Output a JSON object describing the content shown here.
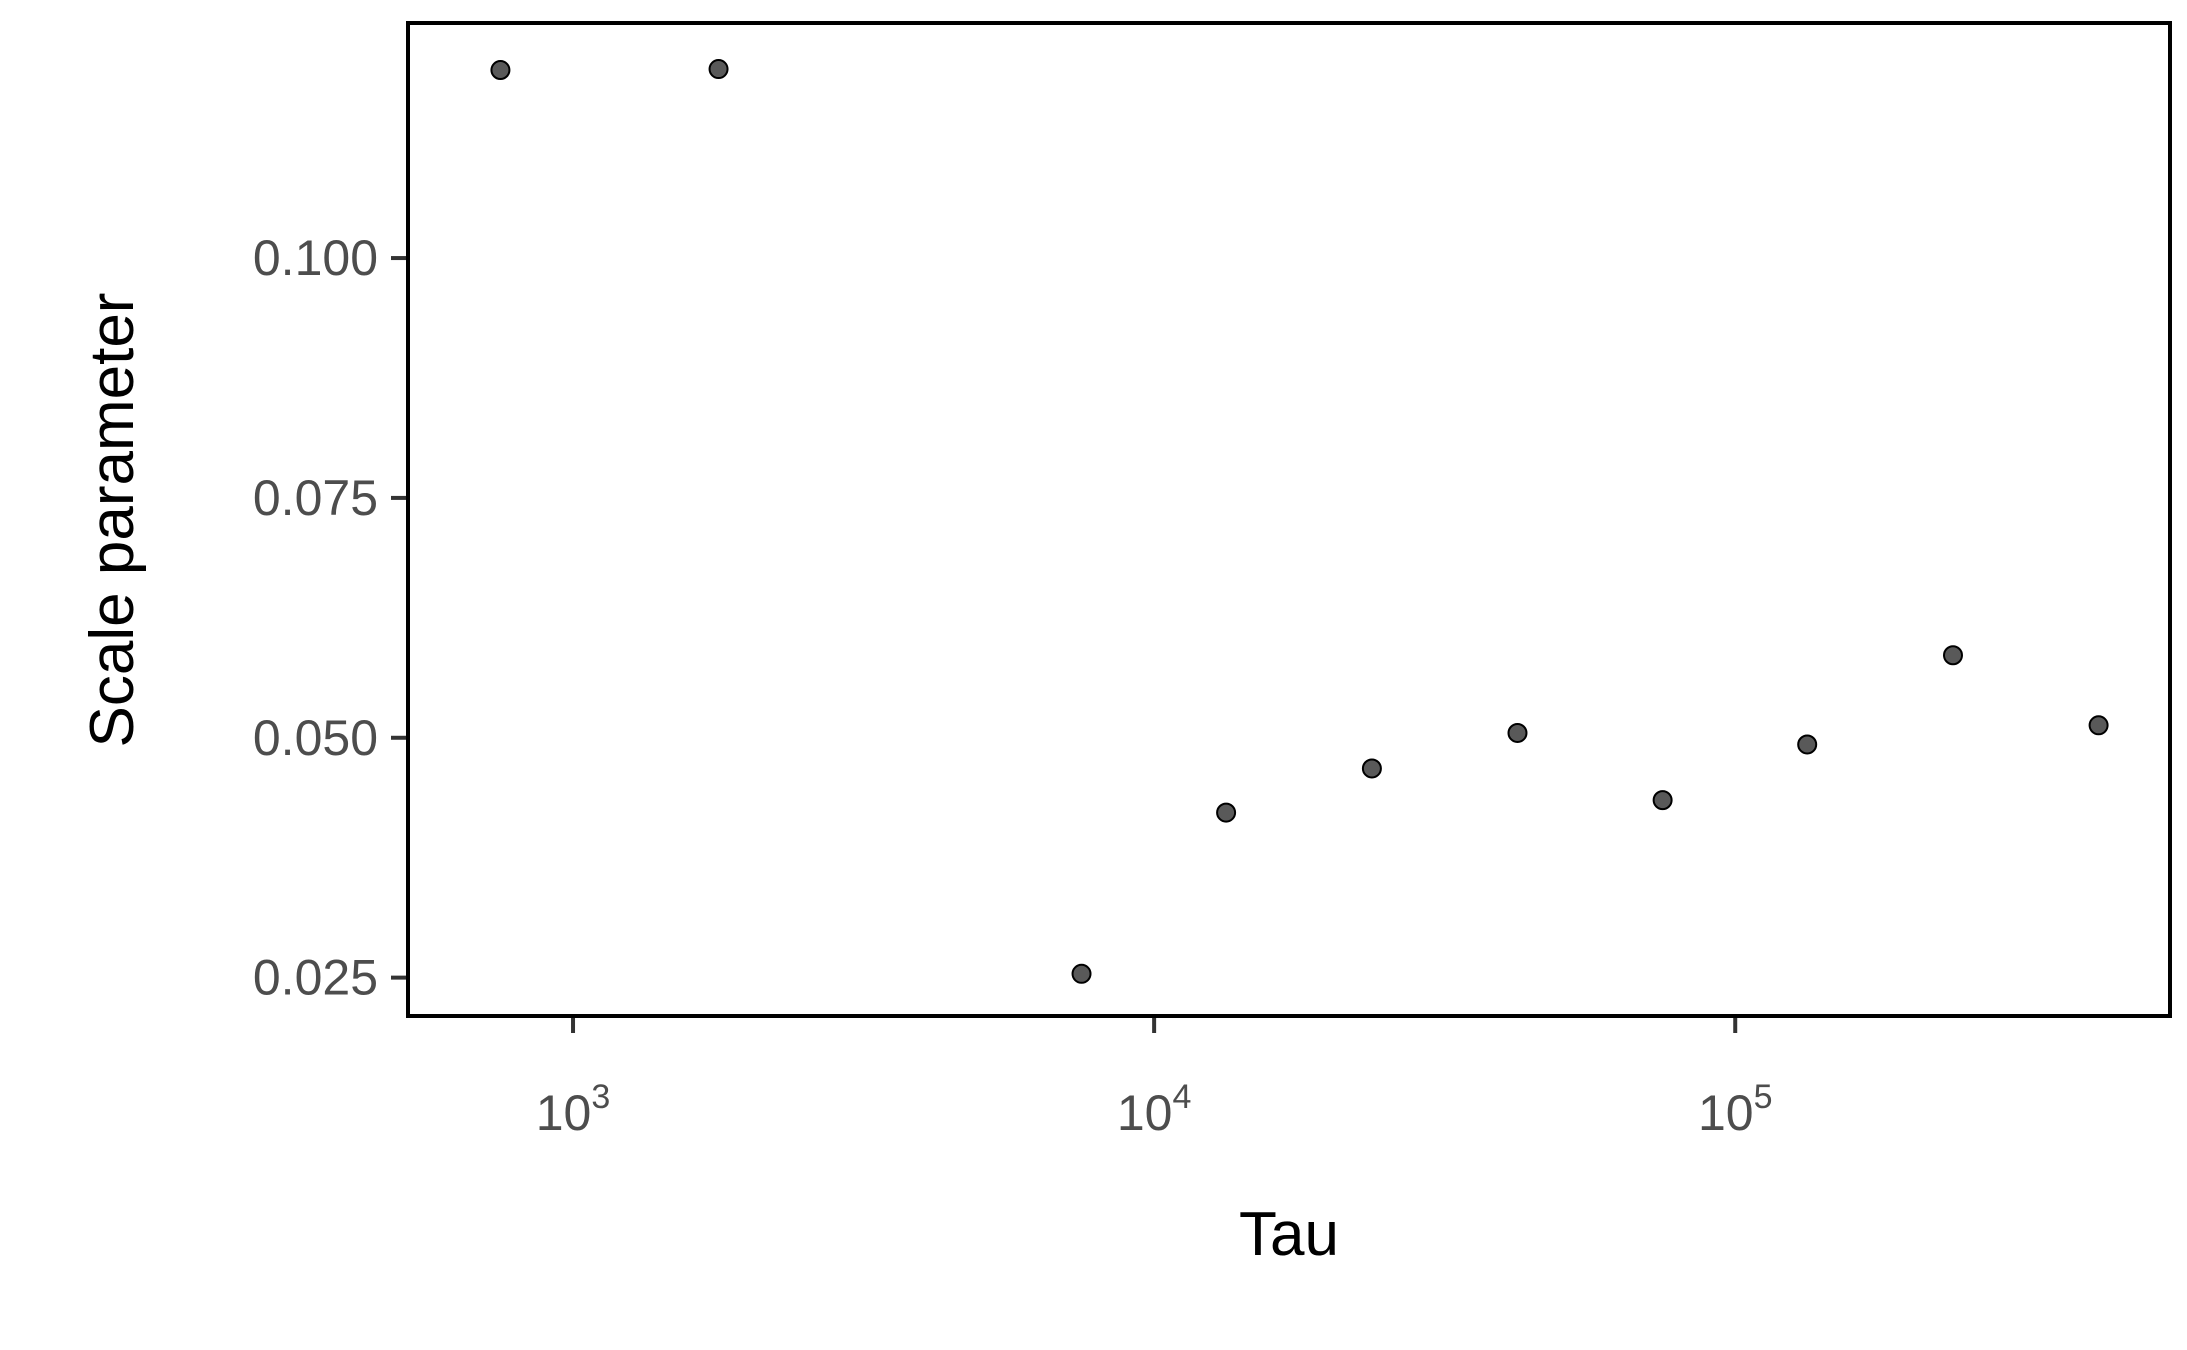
{
  "chart_data": {
    "type": "scatter",
    "title": "",
    "xlabel": "Tau",
    "ylabel": "Scale parameter",
    "x_scale": "log10",
    "xlim": [
      520,
      560000
    ],
    "ylim": [
      0.021,
      0.1245
    ],
    "x_ticks": [
      {
        "value": 1000,
        "base": "10",
        "exp": "3"
      },
      {
        "value": 10000,
        "base": "10",
        "exp": "4"
      },
      {
        "value": 100000,
        "base": "10",
        "exp": "5"
      }
    ],
    "y_ticks": [
      {
        "value": 0.025,
        "label": "0.025"
      },
      {
        "value": 0.05,
        "label": "0.050"
      },
      {
        "value": 0.075,
        "label": "0.075"
      },
      {
        "value": 0.1,
        "label": "0.100"
      }
    ],
    "grid": false,
    "legend": "none",
    "point_color": "#595959",
    "point_stroke": "#000000",
    "series": [
      {
        "points": [
          {
            "x": 750,
            "y": 0.1196
          },
          {
            "x": 1780,
            "y": 0.1197
          },
          {
            "x": 7500,
            "y": 0.0254
          },
          {
            "x": 13300,
            "y": 0.0422
          },
          {
            "x": 23700,
            "y": 0.0468
          },
          {
            "x": 42200,
            "y": 0.0505
          },
          {
            "x": 75000,
            "y": 0.0435
          },
          {
            "x": 133000,
            "y": 0.0493
          },
          {
            "x": 237000,
            "y": 0.0586
          },
          {
            "x": 422000,
            "y": 0.0513
          }
        ]
      }
    ]
  }
}
